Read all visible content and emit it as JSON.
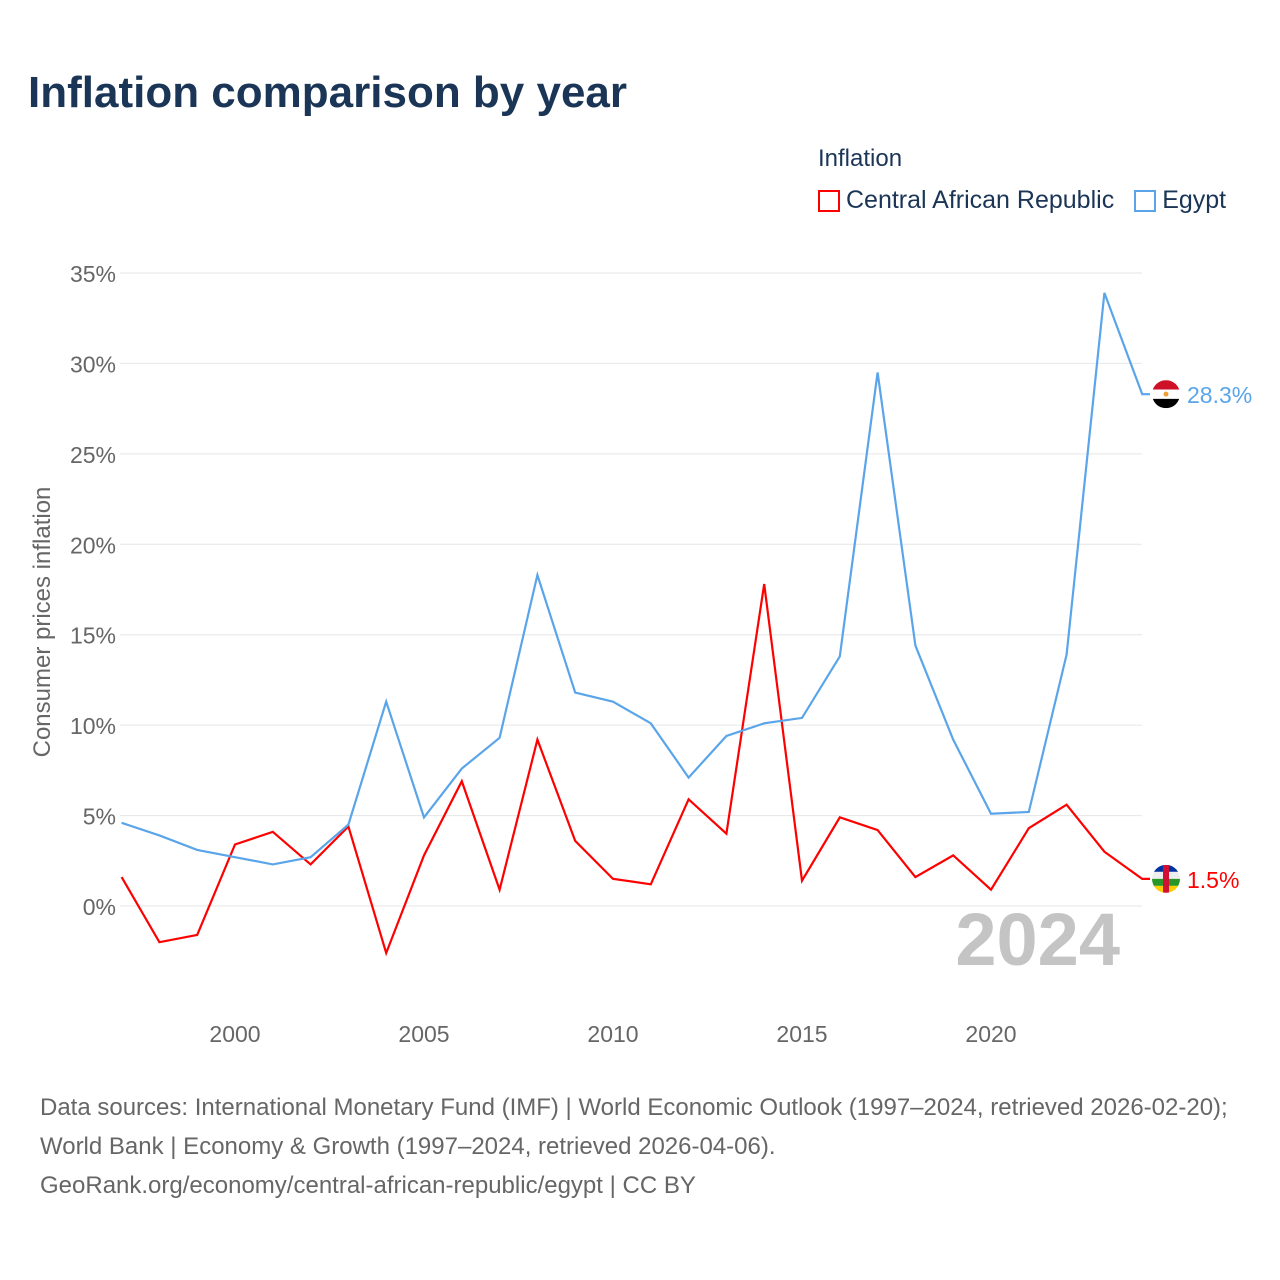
{
  "title": "Inflation comparison by year",
  "legend_title": "Inflation",
  "sources": "Data sources: International Monetary Fund (IMF) | World Economic Outlook (1997–2024, retrieved 2026-02-20); World Bank | Economy & Growth (1997–2024, retrieved 2026-04-06).",
  "source_url": "GeoRank.org/economy/central-african-republic/egypt | CC BY",
  "chart_data": {
    "type": "line",
    "title": "Inflation comparison by year",
    "xlabel": "",
    "ylabel": "Consumer prices inflation",
    "ylim": [
      -5.7,
      35
    ],
    "xlim": [
      1997,
      2024
    ],
    "year_label": "2024",
    "x_ticks": [
      2000,
      2005,
      2010,
      2015,
      2020
    ],
    "y_ticks": [
      0,
      5,
      10,
      15,
      20,
      25,
      30,
      35
    ],
    "y_tick_labels": [
      "0%",
      "5%",
      "10%",
      "15%",
      "20%",
      "25%",
      "30%",
      "35%"
    ],
    "grid": true,
    "legend_position": "top-right",
    "x": [
      1997,
      1998,
      1999,
      2000,
      2001,
      2002,
      2003,
      2004,
      2005,
      2006,
      2007,
      2008,
      2009,
      2010,
      2011,
      2012,
      2013,
      2014,
      2015,
      2016,
      2017,
      2018,
      2019,
      2020,
      2021,
      2022,
      2023,
      2024
    ],
    "series": [
      {
        "name": "Central African Republic",
        "color": "#ff0000",
        "end_label": "1.5%",
        "values": [
          1.6,
          -2.0,
          -1.6,
          3.4,
          4.1,
          2.3,
          4.4,
          -2.6,
          2.8,
          6.9,
          0.9,
          9.2,
          3.6,
          1.5,
          1.2,
          5.9,
          4.0,
          17.8,
          1.4,
          4.9,
          4.2,
          1.6,
          2.8,
          0.9,
          4.3,
          5.6,
          3.0,
          1.5
        ]
      },
      {
        "name": "Egypt",
        "color": "#5aa5ea",
        "end_label": "28.3%",
        "values": [
          4.6,
          3.9,
          3.1,
          2.7,
          2.3,
          2.7,
          4.5,
          11.3,
          4.9,
          7.6,
          9.3,
          18.3,
          11.8,
          11.3,
          10.1,
          7.1,
          9.4,
          10.1,
          10.4,
          13.8,
          29.5,
          14.4,
          9.2,
          5.1,
          5.2,
          13.9,
          33.9,
          28.3
        ]
      }
    ]
  }
}
